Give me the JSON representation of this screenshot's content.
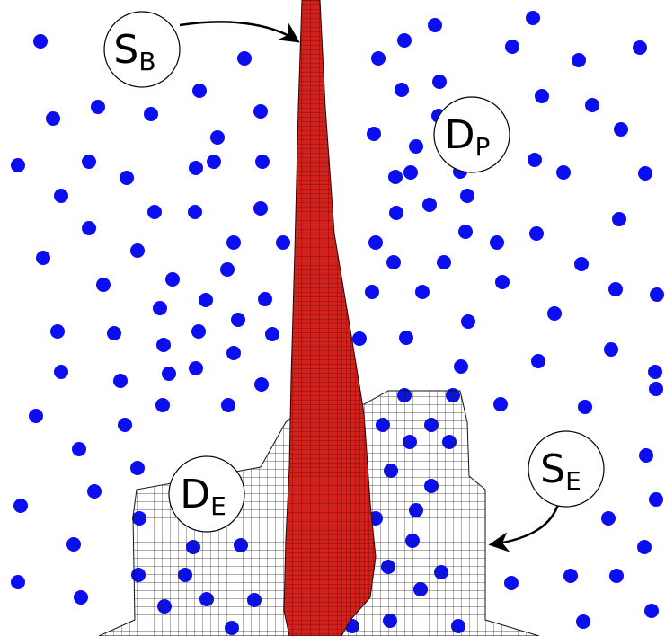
{
  "labels": [
    {
      "main": "S",
      "sub": "B"
    },
    {
      "main": "D",
      "sub": "P"
    },
    {
      "main": "D",
      "sub": "E"
    },
    {
      "main": "S",
      "sub": "E"
    }
  ]
}
